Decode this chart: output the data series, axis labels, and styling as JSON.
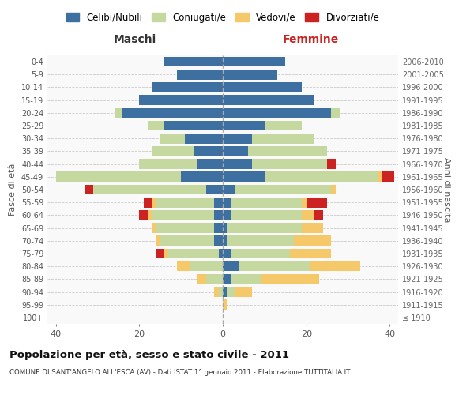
{
  "age_groups": [
    "100+",
    "95-99",
    "90-94",
    "85-89",
    "80-84",
    "75-79",
    "70-74",
    "65-69",
    "60-64",
    "55-59",
    "50-54",
    "45-49",
    "40-44",
    "35-39",
    "30-34",
    "25-29",
    "20-24",
    "15-19",
    "10-14",
    "5-9",
    "0-4"
  ],
  "birth_years": [
    "≤ 1910",
    "1911-1915",
    "1916-1920",
    "1921-1925",
    "1926-1930",
    "1931-1935",
    "1936-1940",
    "1941-1945",
    "1946-1950",
    "1951-1955",
    "1956-1960",
    "1961-1965",
    "1966-1970",
    "1971-1975",
    "1976-1980",
    "1981-1985",
    "1986-1990",
    "1991-1995",
    "1996-2000",
    "2001-2005",
    "2006-2010"
  ],
  "colors": {
    "celibi": "#3d6fa0",
    "coniugati": "#c5d8a0",
    "vedovi": "#f5c96a",
    "divorziati": "#cc2222"
  },
  "maschi": {
    "celibi": [
      0,
      0,
      0,
      0,
      0,
      1,
      2,
      2,
      2,
      2,
      4,
      10,
      6,
      7,
      9,
      14,
      24,
      20,
      17,
      11,
      14
    ],
    "coniugati": [
      0,
      0,
      1,
      4,
      8,
      12,
      13,
      14,
      15,
      14,
      27,
      30,
      14,
      10,
      6,
      4,
      2,
      0,
      0,
      0,
      0
    ],
    "vedovi": [
      0,
      0,
      1,
      2,
      3,
      1,
      1,
      1,
      1,
      1,
      0,
      0,
      0,
      0,
      0,
      0,
      0,
      0,
      0,
      0,
      0
    ],
    "divorziati": [
      0,
      0,
      0,
      0,
      0,
      2,
      0,
      0,
      2,
      2,
      2,
      0,
      0,
      0,
      0,
      0,
      0,
      0,
      0,
      0,
      0
    ]
  },
  "femmine": {
    "celibi": [
      0,
      0,
      1,
      2,
      4,
      2,
      1,
      1,
      2,
      2,
      3,
      10,
      7,
      6,
      7,
      10,
      26,
      22,
      19,
      13,
      15
    ],
    "coniugati": [
      0,
      0,
      2,
      7,
      17,
      14,
      16,
      18,
      17,
      17,
      23,
      27,
      18,
      19,
      15,
      9,
      2,
      0,
      0,
      0,
      0
    ],
    "vedovi": [
      0,
      1,
      4,
      14,
      12,
      10,
      9,
      5,
      3,
      1,
      1,
      1,
      0,
      0,
      0,
      0,
      0,
      0,
      0,
      0,
      0
    ],
    "divorziati": [
      0,
      0,
      0,
      0,
      0,
      0,
      0,
      0,
      2,
      5,
      0,
      3,
      2,
      0,
      0,
      0,
      0,
      0,
      0,
      0,
      0
    ]
  },
  "title": "Popolazione per età, sesso e stato civile - 2011",
  "subtitle": "COMUNE DI SANT'ANGELO ALL'ESCA (AV) - Dati ISTAT 1° gennaio 2011 - Elaborazione TUTTITALIA.IT",
  "xlabel_left": "Maschi",
  "xlabel_right": "Femmine",
  "ylabel_left": "Fasce di età",
  "ylabel_right": "Anni di nascita",
  "legend_labels": [
    "Celibi/Nubili",
    "Coniugati/e",
    "Vedovi/e",
    "Divorziati/e"
  ],
  "xlim": 42,
  "background_color": "#ffffff"
}
